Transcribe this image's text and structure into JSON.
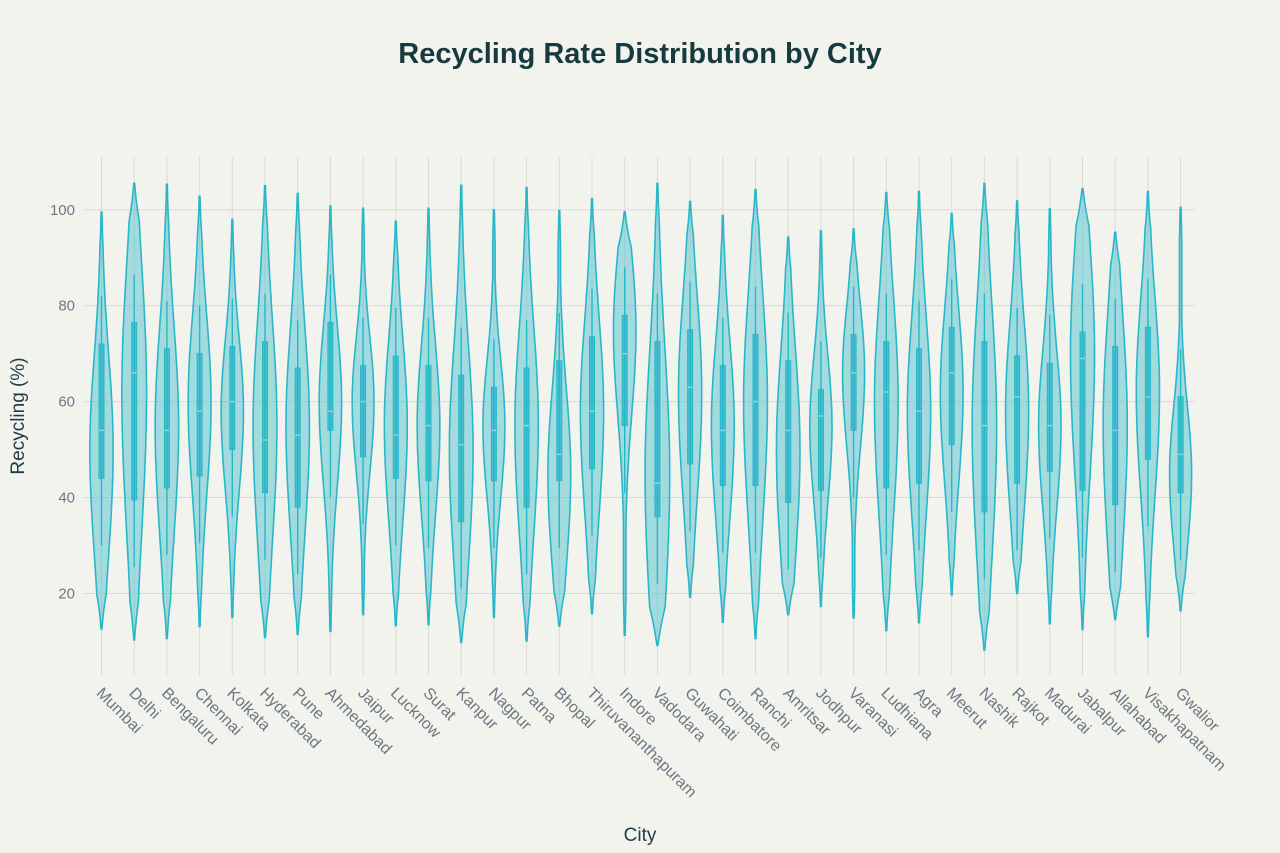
{
  "chart_data": {
    "type": "violin",
    "title": "Recycling Rate Distribution by City",
    "xlabel": "City",
    "ylabel": "Recycling (%)",
    "ylim": [
      3,
      111
    ],
    "yticks": [
      20,
      40,
      60,
      80,
      100
    ],
    "grid": true,
    "color": "#29b6c9",
    "fill_color": "#5cc6d2",
    "categories": [
      "Mumbai",
      "Delhi",
      "Bengaluru",
      "Chennai",
      "Kolkata",
      "Hyderabad",
      "Pune",
      "Ahmedabad",
      "Jaipur",
      "Lucknow",
      "Surat",
      "Kanpur",
      "Nagpur",
      "Patna",
      "Bhopal",
      "Thiruvananthapuram",
      "Indore",
      "Vadodara",
      "Guwahati",
      "Coimbatore",
      "Ranchi",
      "Amritsar",
      "Jodhpur",
      "Varanasi",
      "Ludhiana",
      "Agra",
      "Meerut",
      "Nashik",
      "Rajkot",
      "Madurai",
      "Jabalpur",
      "Allahabad",
      "Visakhapatnam",
      "Gwalior"
    ],
    "series": [
      {
        "min": 12.6,
        "q1": 44,
        "median": 54,
        "q3": 72,
        "max": 99.5,
        "mode": 50
      },
      {
        "min": 10.3,
        "q1": 39.5,
        "median": 66,
        "q3": 76.5,
        "max": 105.5,
        "mode": 62
      },
      {
        "min": 10.6,
        "q1": 42,
        "median": 54,
        "q3": 71,
        "max": 105.3,
        "mode": 55
      },
      {
        "min": 13.1,
        "q1": 44.5,
        "median": 58,
        "q3": 70,
        "max": 102.8,
        "mode": 60
      },
      {
        "min": 15,
        "q1": 50,
        "median": 60,
        "q3": 71.5,
        "max": 98,
        "mode": 58
      },
      {
        "min": 10.8,
        "q1": 41,
        "median": 52,
        "q3": 72.5,
        "max": 105,
        "mode": 55
      },
      {
        "min": 11.5,
        "q1": 38,
        "median": 53,
        "q3": 67,
        "max": 103.4,
        "mode": 55
      },
      {
        "min": 12.1,
        "q1": 54,
        "median": 58,
        "q3": 76.5,
        "max": 100.8,
        "mode": 60
      },
      {
        "min": 15.6,
        "q1": 48.5,
        "median": 60,
        "q3": 67.5,
        "max": 100.3,
        "mode": 60
      },
      {
        "min": 13.3,
        "q1": 44,
        "median": 53,
        "q3": 69.5,
        "max": 97.6,
        "mode": 55
      },
      {
        "min": 13.5,
        "q1": 43.5,
        "median": 55,
        "q3": 67.5,
        "max": 100.3,
        "mode": 55
      },
      {
        "min": 9.8,
        "q1": 35,
        "median": 51,
        "q3": 65.5,
        "max": 105.1,
        "mode": 50
      },
      {
        "min": 15,
        "q1": 43.5,
        "median": 54,
        "q3": 63,
        "max": 100,
        "mode": 55
      },
      {
        "min": 10.1,
        "q1": 38,
        "median": 55,
        "q3": 67,
        "max": 104.6,
        "mode": 55
      },
      {
        "min": 13.2,
        "q1": 43.5,
        "median": 49,
        "q3": 68.5,
        "max": 99.8,
        "mode": 45
      },
      {
        "min": 15.8,
        "q1": 46,
        "median": 58,
        "q3": 73.5,
        "max": 102.3,
        "mode": 58
      },
      {
        "min": 11.3,
        "q1": 55,
        "median": 70,
        "q3": 78,
        "max": 99.6,
        "mode": 75
      },
      {
        "min": 9.2,
        "q1": 36,
        "median": 43,
        "q3": 72.5,
        "max": 105.5,
        "mode": 45
      },
      {
        "min": 19.2,
        "q1": 47,
        "median": 63,
        "q3": 75,
        "max": 101.7,
        "mode": 62
      },
      {
        "min": 14,
        "q1": 42.5,
        "median": 54,
        "q3": 67.5,
        "max": 98.8,
        "mode": 55
      },
      {
        "min": 10.6,
        "q1": 42.5,
        "median": 60,
        "q3": 74,
        "max": 104.2,
        "mode": 60
      },
      {
        "min": 15.6,
        "q1": 39,
        "median": 54,
        "q3": 68.5,
        "max": 94.3,
        "mode": 50
      },
      {
        "min": 17.3,
        "q1": 41.5,
        "median": 57,
        "q3": 62.5,
        "max": 95.6,
        "mode": 55
      },
      {
        "min": 14.9,
        "q1": 54,
        "median": 66,
        "q3": 74,
        "max": 96,
        "mode": 66
      },
      {
        "min": 12.3,
        "q1": 42,
        "median": 62,
        "q3": 72.5,
        "max": 103.6,
        "mode": 60
      },
      {
        "min": 13.9,
        "q1": 43,
        "median": 58,
        "q3": 71,
        "max": 103.8,
        "mode": 58
      },
      {
        "min": 19.7,
        "q1": 51,
        "median": 66,
        "q3": 75.5,
        "max": 99.2,
        "mode": 62
      },
      {
        "min": 8.2,
        "q1": 37,
        "median": 55,
        "q3": 72.5,
        "max": 105.5,
        "mode": 55
      },
      {
        "min": 20,
        "q1": 43,
        "median": 61,
        "q3": 69.5,
        "max": 101.8,
        "mode": 58
      },
      {
        "min": 13.7,
        "q1": 45.5,
        "median": 55,
        "q3": 68,
        "max": 100.2,
        "mode": 55
      },
      {
        "min": 12.5,
        "q1": 41.5,
        "median": 69,
        "q3": 74.5,
        "max": 104.4,
        "mode": 70
      },
      {
        "min": 14.6,
        "q1": 38.5,
        "median": 54,
        "q3": 71.5,
        "max": 95.3,
        "mode": 55
      },
      {
        "min": 11,
        "q1": 48,
        "median": 61,
        "q3": 75.5,
        "max": 103.8,
        "mode": 62
      },
      {
        "min": 16.4,
        "q1": 41,
        "median": 49,
        "q3": 61,
        "max": 100.5,
        "mode": 45
      }
    ]
  }
}
